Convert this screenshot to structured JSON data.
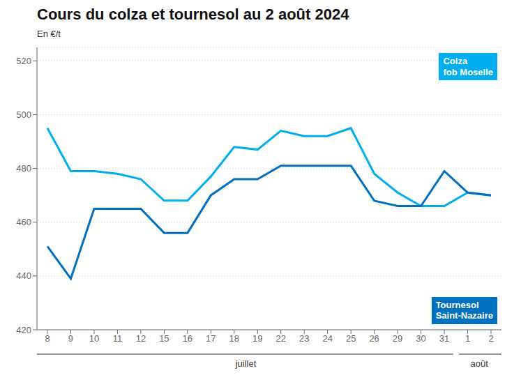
{
  "chart_data": {
    "type": "line",
    "title": "Cours du colza et tournesol au 2 août 2024",
    "ylabel": "En €/t",
    "categories": [
      "8",
      "9",
      "10",
      "11",
      "12",
      "15",
      "16",
      "17",
      "18",
      "19",
      "22",
      "23",
      "24",
      "25",
      "26",
      "29",
      "30",
      "31",
      "1",
      "2"
    ],
    "category_groups": [
      {
        "label": "juillet",
        "size": 18
      },
      {
        "label": "août",
        "size": 2
      }
    ],
    "series": [
      {
        "name": "Colza\nfob Moselle",
        "color": "#00AEEF",
        "values": [
          495,
          479,
          479,
          478,
          476,
          468,
          468,
          477,
          488,
          487,
          494,
          492,
          492,
          495,
          478,
          471,
          466,
          466,
          471,
          470
        ]
      },
      {
        "name": "Tournesol\nSaint-Nazaire",
        "color": "#0070C0",
        "values": [
          451,
          439,
          465,
          465,
          465,
          456,
          456,
          470,
          476,
          476,
          481,
          481,
          481,
          481,
          468,
          466,
          466,
          479,
          471,
          470
        ]
      }
    ],
    "ylim": [
      420,
      525
    ],
    "yticks": [
      420,
      440,
      460,
      480,
      500,
      520
    ],
    "grid": true,
    "legend": "right"
  }
}
